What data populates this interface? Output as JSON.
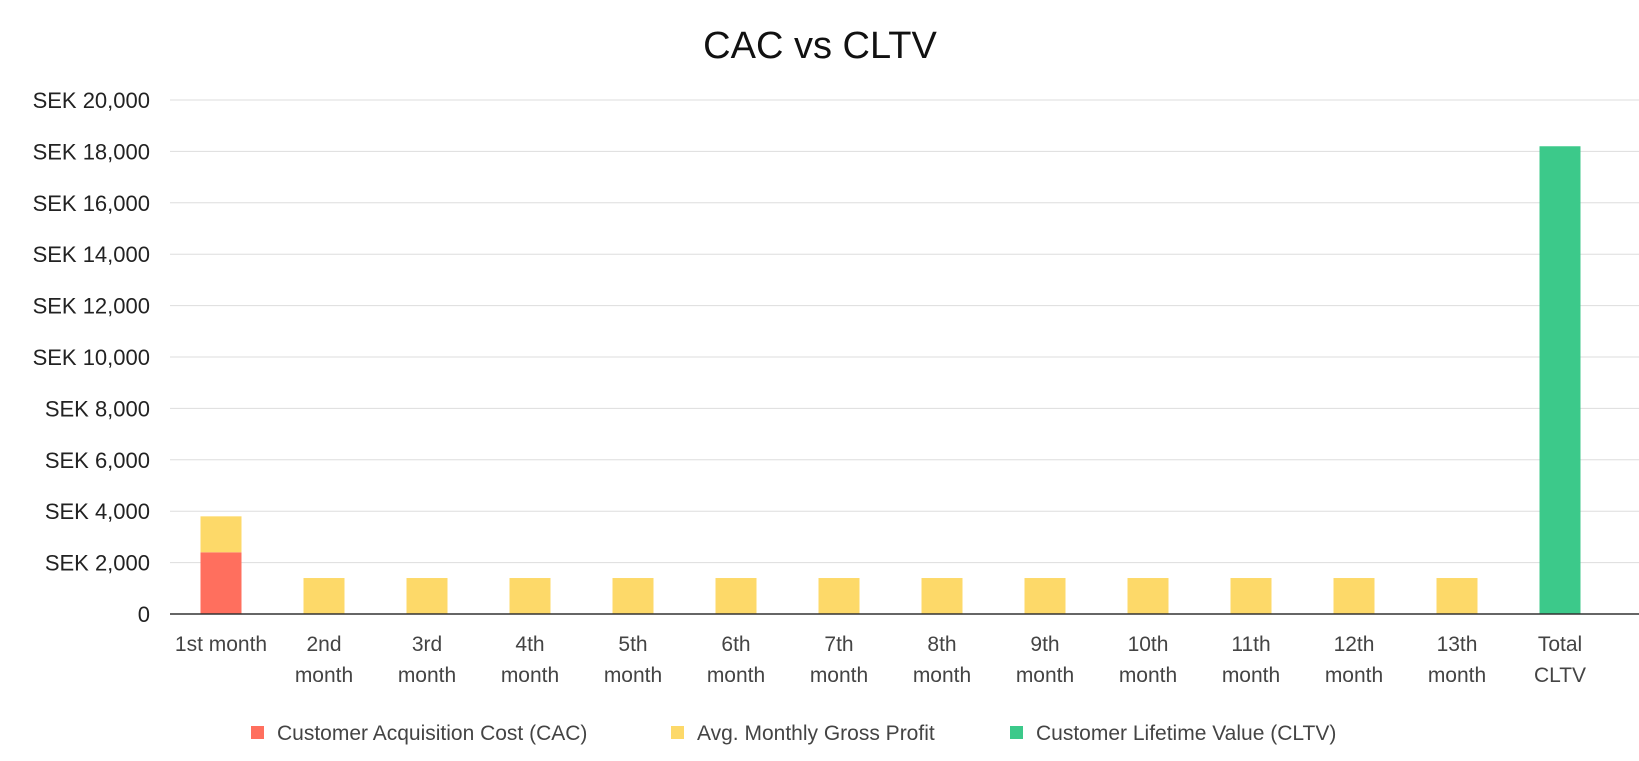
{
  "chart_data": {
    "type": "bar",
    "stacked": true,
    "title": "CAC vs CLTV",
    "xlabel": "",
    "ylabel": "",
    "ylim": [
      0,
      20000
    ],
    "y_ticks": [
      "0",
      "SEK 2,000",
      "SEK 4,000",
      "SEK 6,000",
      "SEK 8,000",
      "SEK 10,000",
      "SEK 12,000",
      "SEK 14,000",
      "SEK 16,000",
      "SEK 18,000",
      "SEK 20,000"
    ],
    "y_tick_values": [
      0,
      2000,
      4000,
      6000,
      8000,
      10000,
      12000,
      14000,
      16000,
      18000,
      20000
    ],
    "grid": true,
    "legend_position": "bottom",
    "categories": [
      [
        "1st month"
      ],
      [
        "2nd",
        "month"
      ],
      [
        "3rd",
        "month"
      ],
      [
        "4th",
        "month"
      ],
      [
        "5th",
        "month"
      ],
      [
        "6th",
        "month"
      ],
      [
        "7th",
        "month"
      ],
      [
        "8th",
        "month"
      ],
      [
        "9th",
        "month"
      ],
      [
        "10th",
        "month"
      ],
      [
        "11th",
        "month"
      ],
      [
        "12th",
        "month"
      ],
      [
        "13th",
        "month"
      ],
      [
        "Total",
        "CLTV"
      ]
    ],
    "series": [
      {
        "name": "Customer Acquisition Cost (CAC)",
        "color": "#ff6f5e",
        "values": [
          2400,
          0,
          0,
          0,
          0,
          0,
          0,
          0,
          0,
          0,
          0,
          0,
          0,
          0
        ]
      },
      {
        "name": "Avg. Monthly Gross Profit",
        "color": "#fdd969",
        "values": [
          1400,
          1400,
          1400,
          1400,
          1400,
          1400,
          1400,
          1400,
          1400,
          1400,
          1400,
          1400,
          1400,
          0
        ]
      },
      {
        "name": "Customer Lifetime Value (CLTV)",
        "color": "#3cc98a",
        "values": [
          0,
          0,
          0,
          0,
          0,
          0,
          0,
          0,
          0,
          0,
          0,
          0,
          0,
          18200
        ]
      }
    ]
  }
}
